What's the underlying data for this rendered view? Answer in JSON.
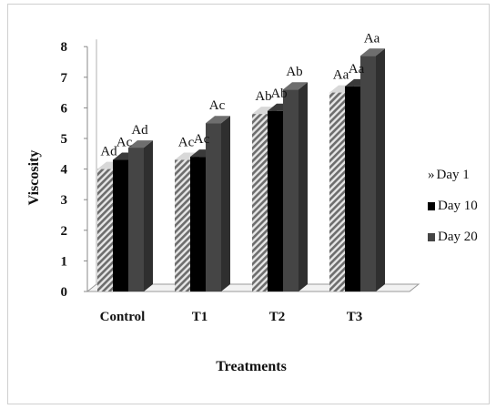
{
  "chart_data": {
    "type": "bar",
    "ylabel": "Viscosity",
    "xlabel": "Treatments",
    "categories": [
      "Control",
      "T1",
      "T2",
      "T3"
    ],
    "ylim": [
      0,
      8
    ],
    "yticks": [
      "0",
      "1",
      "2",
      "3",
      "4",
      "5",
      "6",
      "7",
      "8"
    ],
    "series": [
      {
        "name": "Day 1",
        "values": [
          4.0,
          4.3,
          5.8,
          6.5
        ],
        "labels": [
          "Ad",
          "Ac",
          "Ab",
          "Aa"
        ]
      },
      {
        "name": "Day 10",
        "values": [
          4.3,
          4.4,
          5.9,
          6.7
        ],
        "labels": [
          "Ac",
          "Ac",
          "Ab",
          "Aa"
        ]
      },
      {
        "name": "Day 20",
        "values": [
          4.7,
          5.5,
          6.6,
          7.7
        ],
        "labels": [
          "Ad",
          "Ac",
          "Ab",
          "Aa"
        ]
      }
    ],
    "legend_position": "right",
    "grid": false
  },
  "legend": {
    "items": [
      {
        "label": "Day 1",
        "marker": "»"
      },
      {
        "label": "Day 10"
      },
      {
        "label": "Day 20"
      }
    ]
  },
  "colors": {
    "day1": "#9a9a9a",
    "day10": "#000000",
    "day20": "#454545"
  }
}
